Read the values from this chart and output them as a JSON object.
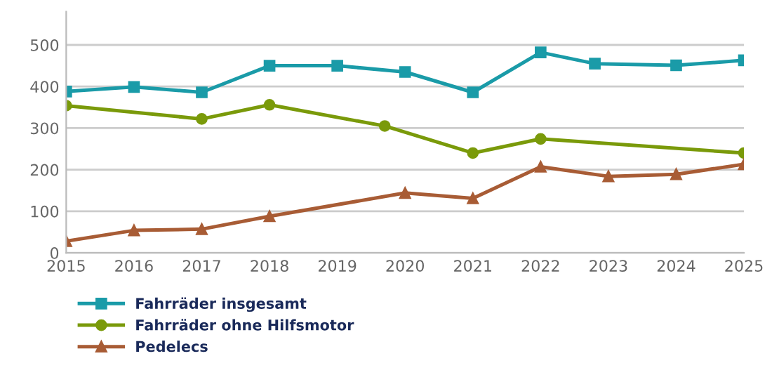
{
  "chart_data": {
    "type": "line",
    "xlim": [
      2015,
      2025
    ],
    "xticks": [
      2015,
      2016,
      2017,
      2018,
      2019,
      2020,
      2021,
      2022,
      2023,
      2024,
      2025
    ],
    "ylim": [
      0,
      580
    ],
    "yticks": [
      0,
      100,
      200,
      300,
      400,
      500
    ],
    "grid": "y",
    "legend": "bottom",
    "line_style": "solid",
    "series": [
      {
        "name": "Fahrräder insgesamt",
        "color": "#1a9ba8",
        "marker": "square",
        "x": [
          2015,
          2016,
          2017,
          2018,
          2019,
          2020,
          2021,
          2022,
          2022.8,
          2024,
          2025
        ],
        "values": [
          388,
          399,
          386,
          450,
          450,
          435,
          386,
          482,
          455,
          451,
          463
        ]
      },
      {
        "name": "Fahrräder ohne Hilfsmotor",
        "color": "#7a9a0a",
        "marker": "circle",
        "x": [
          2015,
          2017,
          2018,
          2019.7,
          2021,
          2022,
          2025
        ],
        "values": [
          354,
          322,
          356,
          305,
          240,
          274,
          240
        ]
      },
      {
        "name": "Pedelecs",
        "color": "#a85c35",
        "marker": "triangle",
        "x": [
          2015,
          2016,
          2017,
          2018,
          2020,
          2021,
          2022,
          2023,
          2024,
          2025
        ],
        "values": [
          28,
          54,
          57,
          88,
          144,
          131,
          207,
          184,
          189,
          213
        ]
      }
    ]
  }
}
